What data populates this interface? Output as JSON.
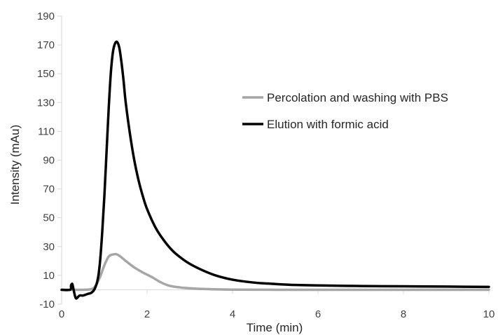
{
  "chart_data": {
    "type": "line",
    "title": "",
    "xlabel": "Time (min)",
    "ylabel": "Intensity (mAu)",
    "xlim": [
      0,
      10
    ],
    "ylim": [
      -10,
      190
    ],
    "xticks": [
      0,
      2,
      4,
      6,
      8,
      10
    ],
    "yticks": [
      -10,
      10,
      30,
      50,
      70,
      90,
      110,
      130,
      150,
      170,
      190
    ],
    "grid": false,
    "legend_position": "right",
    "series": [
      {
        "name": "Percolation and washing with PBS",
        "color": "#a6a6a6",
        "x": [
          0,
          0.2,
          0.5,
          0.7,
          0.8,
          0.9,
          1.0,
          1.1,
          1.2,
          1.3,
          1.4,
          1.5,
          1.7,
          1.9,
          2.1,
          2.3,
          2.5,
          2.8,
          3.2,
          3.6,
          4.0,
          5.0,
          6.0,
          8.0,
          10.0
        ],
        "y": [
          0,
          0,
          0,
          0.5,
          3,
          9,
          17,
          23,
          24.5,
          24.5,
          22.5,
          20,
          15.5,
          12,
          9,
          5.5,
          3,
          1.5,
          0.7,
          0.3,
          0.1,
          0,
          0,
          0,
          0
        ]
      },
      {
        "name": "Elution with formic acid",
        "color": "#000000",
        "x": [
          0,
          0.2,
          0.22,
          0.25,
          0.28,
          0.32,
          0.35,
          0.42,
          0.5,
          0.6,
          0.7,
          0.78,
          0.85,
          0.9,
          0.95,
          1.0,
          1.05,
          1.1,
          1.15,
          1.2,
          1.25,
          1.3,
          1.35,
          1.4,
          1.45,
          1.5,
          1.6,
          1.7,
          1.8,
          1.9,
          2.0,
          2.2,
          2.4,
          2.6,
          2.8,
          3.0,
          3.3,
          3.6,
          4.0,
          4.5,
          5.0,
          5.5,
          6.0,
          7.0,
          8.0,
          9.0,
          10.0
        ],
        "y": [
          0,
          0,
          3,
          4,
          0,
          -5,
          -6,
          -4,
          -4,
          -3,
          -2,
          1,
          8,
          20,
          40,
          65,
          95,
          125,
          150,
          165,
          171,
          172,
          168,
          158,
          145,
          130,
          108,
          90,
          76,
          65,
          56,
          43,
          34,
          27,
          22,
          18,
          13.5,
          10,
          7,
          5,
          4,
          3.3,
          3,
          2.6,
          2.4,
          2.2,
          2
        ]
      }
    ]
  }
}
